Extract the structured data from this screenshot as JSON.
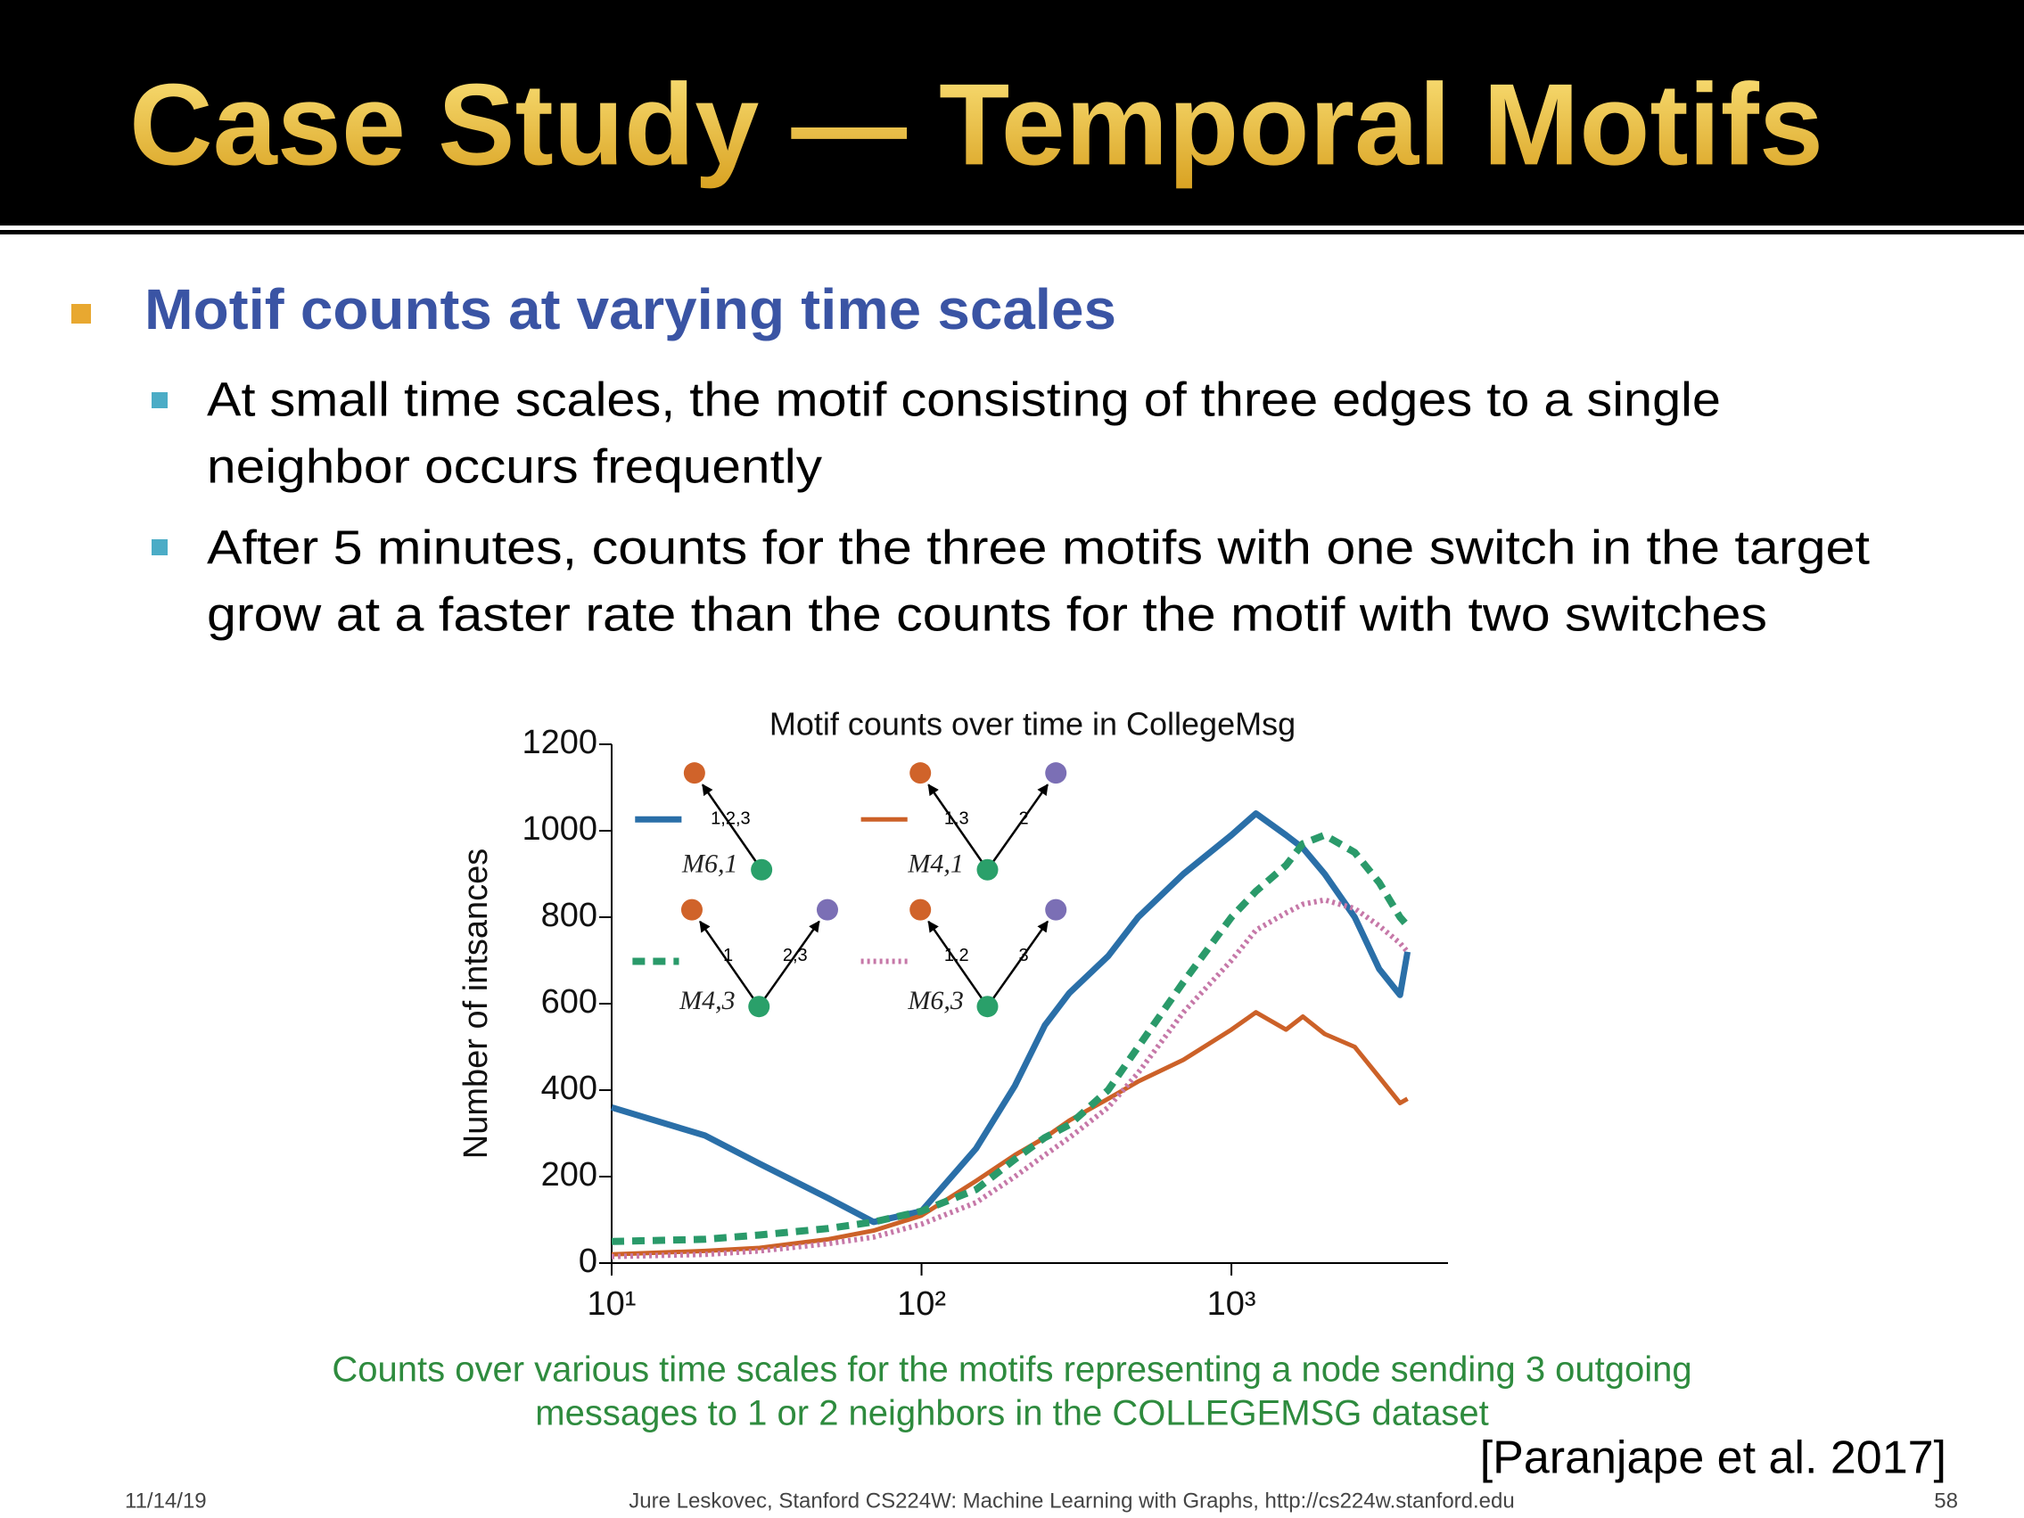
{
  "header": {
    "title": "Case Study — Temporal Motifs"
  },
  "bullets": [
    {
      "text": "Motif counts at varying time scales",
      "sub": [
        [
          "At small time scales, the motif consisting of three edges to a single",
          "neighbor occurs frequently"
        ],
        [
          "After 5 minutes, counts for the three motifs with one switch in the target",
          "grow at a faster rate than the counts for the motif with two switches"
        ]
      ]
    }
  ],
  "chart_data": {
    "type": "line",
    "title": "Motif counts over time in CollegeMsg",
    "y_label": "Number of intsances",
    "x_scale": "log",
    "x": [
      10,
      20,
      30,
      50,
      70,
      100,
      150,
      200,
      250,
      300,
      400,
      500,
      700,
      1000,
      1200,
      1500,
      1700,
      2000,
      2500,
      3000,
      3500,
      3700
    ],
    "xlim": [
      10,
      5000
    ],
    "xticks": [
      {
        "value": 10,
        "label": "10¹"
      },
      {
        "value": 100,
        "label": "10²"
      },
      {
        "value": 1000,
        "label": "10³"
      }
    ],
    "ylim": [
      0,
      1200
    ],
    "yticks": [
      0,
      200,
      400,
      600,
      800,
      1000,
      1200
    ],
    "series": [
      {
        "name": "M6,1",
        "edge_labels": [
          "1,2,3"
        ],
        "color": "#2a6fa8",
        "style": "solid",
        "values": [
          360,
          295,
          230,
          150,
          95,
          120,
          265,
          410,
          550,
          625,
          710,
          800,
          900,
          990,
          1040,
          990,
          960,
          900,
          800,
          680,
          620,
          720
        ]
      },
      {
        "name": "M4,1",
        "edge_labels": [
          "1,3",
          "2"
        ],
        "color": "#cc6128",
        "style": "solid",
        "values": [
          20,
          28,
          35,
          55,
          75,
          110,
          190,
          250,
          290,
          330,
          380,
          420,
          470,
          540,
          580,
          540,
          570,
          530,
          500,
          430,
          370,
          380
        ]
      },
      {
        "name": "M4,3",
        "edge_labels": [
          "1",
          "2,3"
        ],
        "color": "#2a9a6a",
        "style": "dashed",
        "values": [
          50,
          55,
          65,
          80,
          95,
          120,
          170,
          240,
          290,
          320,
          400,
          500,
          650,
          800,
          860,
          920,
          970,
          990,
          950,
          880,
          800,
          780
        ]
      },
      {
        "name": "M6,3",
        "edge_labels": [
          "1,2",
          "3"
        ],
        "color": "#c678a8",
        "style": "dotted",
        "values": [
          15,
          20,
          28,
          45,
          60,
          90,
          140,
          200,
          250,
          290,
          360,
          440,
          580,
          700,
          770,
          810,
          830,
          840,
          820,
          780,
          740,
          720
        ]
      }
    ]
  },
  "caption": [
    "Counts over various time scales for the motifs representing a node sending 3 outgoing",
    "messages to 1 or 2 neighbors in the COLLEGEMSG dataset"
  ],
  "citation": "[Paranjape et al. 2017]",
  "footer": {
    "date": "11/14/19",
    "text": "Jure Leskovec, Stanford CS224W: Machine Learning with Graphs, http://cs224w.stanford.edu",
    "page": "58"
  }
}
